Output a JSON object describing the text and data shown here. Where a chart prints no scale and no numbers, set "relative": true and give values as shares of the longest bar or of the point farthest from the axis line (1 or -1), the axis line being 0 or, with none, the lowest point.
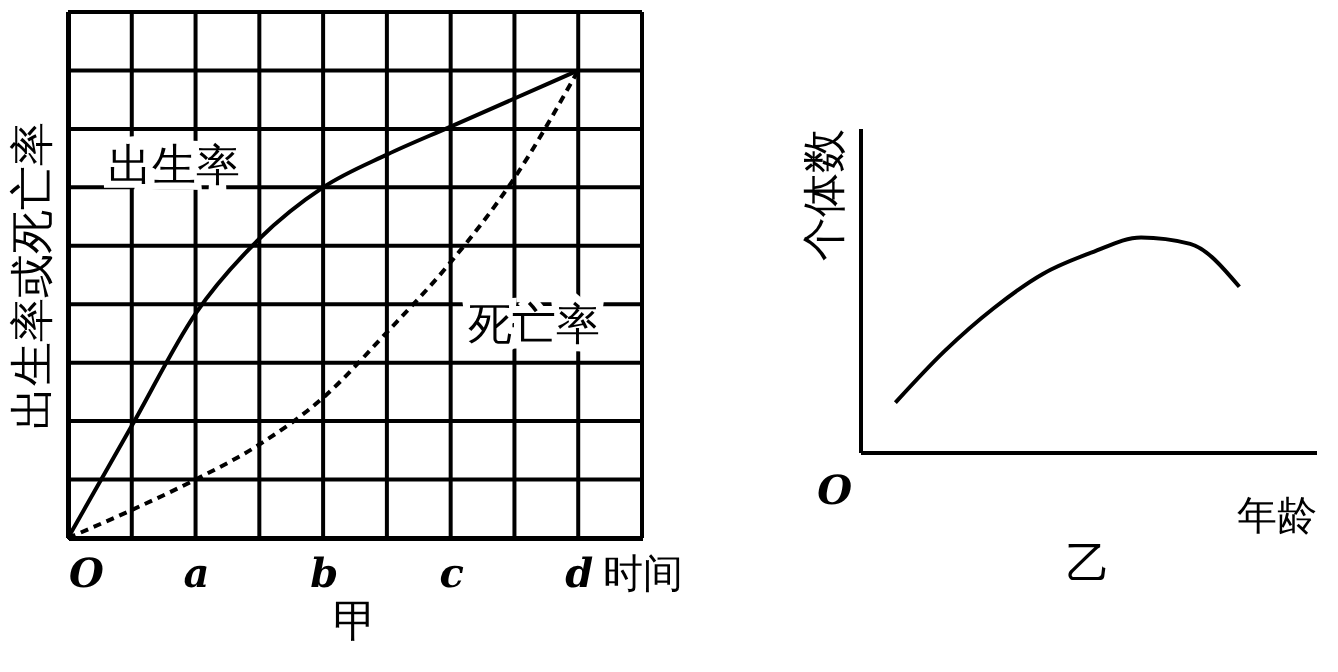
{
  "chart_data": [
    {
      "type": "line",
      "title": "甲",
      "xlabel": "时间",
      "ylabel": "出生率或死亡率",
      "categories": [
        "O",
        null,
        "a",
        null,
        "b",
        null,
        "c",
        null,
        "d"
      ],
      "relative": true,
      "grid": true,
      "tick_labels": "x",
      "series": [
        {
          "name": "出生率",
          "color": "#000000",
          "line_style": "solid",
          "values": [
            0,
            0.24,
            0.48,
            0.64,
            0.75,
            0.82,
            0.88,
            0.94,
            1
          ]
        },
        {
          "name": "死亡率",
          "color": "#000000",
          "line_style": "dashed",
          "values": [
            0,
            0.06,
            0.125,
            0.2,
            0.3,
            0.44,
            0.59,
            0.77,
            1
          ]
        }
      ]
    },
    {
      "type": "line",
      "title": "乙",
      "xlabel": "年龄",
      "ylabel": "个体数",
      "categories": [
        null,
        null,
        null,
        null,
        null,
        null,
        null,
        null
      ],
      "relative": true,
      "tick_labels": false,
      "annotations": [
        "O"
      ],
      "series": [
        {
          "color": "#000000",
          "values": [
            0.23,
            0.47,
            0.67,
            0.83,
            0.93,
            1,
            0.97,
            0.77
          ]
        }
      ]
    }
  ]
}
